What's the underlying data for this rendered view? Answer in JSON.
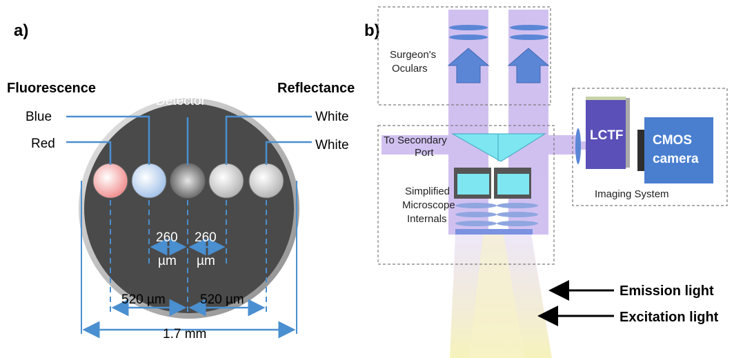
{
  "panel_a": {
    "label": "a)",
    "fluorescence": "Fluorescence",
    "reflectance": "Reflectance",
    "detector": "Detector",
    "blue": "Blue",
    "red": "Red",
    "white_top": "White",
    "white_bottom": "White",
    "dim_260_left": "260",
    "dim_260_left_unit": "µm",
    "dim_260_right": "260",
    "dim_260_right_unit": "µm",
    "dim_520_left": "520 µm",
    "dim_520_right": "520 µm",
    "dim_total": "1.7 mm"
  },
  "panel_b": {
    "label": "b)",
    "oculars_line1": "Surgeon's",
    "oculars_line2": "Oculars",
    "secondary_line1": "To Secondary",
    "secondary_line2": "Port",
    "internals_line1": "Simplified",
    "internals_line2": "Microscope",
    "internals_line3": "Internals",
    "lctf": "LCTF",
    "camera_line1": "CMOS",
    "camera_line2": "camera",
    "imaging_system": "Imaging System",
    "emission_light": "Emission light",
    "excitation_light": "Excitation light"
  },
  "colors": {
    "beam": "#c8b6ee",
    "optic_blue": "#5b86d6",
    "prism_cyan": "#7ee6f0",
    "dim_line": "#4a8fd0",
    "probe_gray": "#4a4a4a",
    "lctf_purple": "#5a50b8",
    "camera_blue": "#4a7fd0"
  }
}
